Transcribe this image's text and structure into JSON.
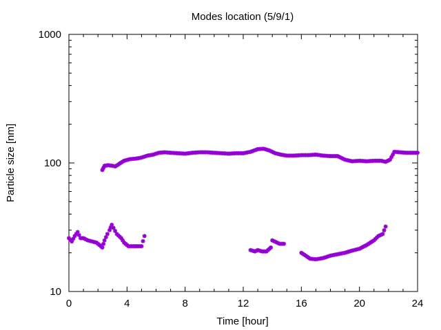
{
  "chart_data": {
    "type": "scatter",
    "title": "Modes location (5/9/1)",
    "xlabel": "Time [hour]",
    "ylabel": "Particle size [nm]",
    "xlim": [
      0,
      24
    ],
    "ylim": [
      10,
      1000
    ],
    "yscale": "log",
    "x_ticks": [
      0,
      4,
      8,
      12,
      16,
      20,
      24
    ],
    "x_tick_labels": [
      "0",
      "4",
      "8",
      "12",
      "16",
      "20",
      "24"
    ],
    "y_ticks": [
      10,
      100,
      1000
    ],
    "y_tick_labels": [
      "10",
      "100",
      "1000"
    ],
    "marker_color": "#9400D3",
    "grid": false,
    "series": [
      {
        "values": [
          [
            2.3,
            88
          ],
          [
            2.45,
            95
          ],
          [
            2.7,
            96
          ],
          [
            3.0,
            95
          ],
          [
            3.2,
            94
          ],
          [
            3.5,
            99
          ],
          [
            3.8,
            104
          ],
          [
            4.2,
            107
          ],
          [
            4.6,
            108
          ],
          [
            5.0,
            110
          ],
          [
            5.4,
            114
          ],
          [
            5.8,
            116
          ],
          [
            6.2,
            120
          ],
          [
            6.6,
            121
          ],
          [
            7.0,
            120
          ],
          [
            7.5,
            119
          ],
          [
            8.0,
            118
          ],
          [
            8.5,
            120
          ],
          [
            9.0,
            121
          ],
          [
            9.5,
            121
          ],
          [
            10.0,
            120
          ],
          [
            10.5,
            119
          ],
          [
            11.0,
            118
          ],
          [
            11.5,
            119
          ],
          [
            12.0,
            119
          ],
          [
            12.5,
            122
          ],
          [
            13.0,
            128
          ],
          [
            13.4,
            129
          ],
          [
            13.8,
            125
          ],
          [
            14.2,
            119
          ],
          [
            14.6,
            116
          ],
          [
            15.0,
            114
          ],
          [
            15.5,
            114
          ],
          [
            16.0,
            115
          ],
          [
            16.5,
            115
          ],
          [
            17.0,
            116
          ],
          [
            17.5,
            114
          ],
          [
            18.0,
            113
          ],
          [
            18.5,
            113
          ],
          [
            19.0,
            106
          ],
          [
            19.5,
            103
          ],
          [
            20.0,
            104
          ],
          [
            20.5,
            103
          ],
          [
            21.0,
            104
          ],
          [
            21.5,
            104
          ],
          [
            21.8,
            102
          ],
          [
            22.1,
            106
          ],
          [
            22.4,
            122
          ],
          [
            22.8,
            121
          ],
          [
            23.2,
            120
          ],
          [
            23.6,
            120
          ],
          [
            24.0,
            120
          ]
        ]
      },
      {
        "values": [
          [
            0.0,
            26
          ],
          [
            0.2,
            24.5
          ],
          [
            0.4,
            27
          ],
          [
            0.6,
            29
          ],
          [
            0.8,
            26
          ],
          [
            1.0,
            26
          ],
          [
            1.3,
            25
          ],
          [
            1.6,
            24.5
          ],
          [
            1.9,
            24
          ],
          [
            2.1,
            23
          ],
          [
            2.3,
            22
          ],
          [
            2.45,
            25
          ],
          [
            2.65,
            28
          ],
          [
            2.8,
            30
          ],
          [
            2.95,
            33
          ],
          [
            3.3,
            28
          ],
          [
            3.6,
            26
          ],
          [
            3.8,
            24
          ],
          [
            4.1,
            22.5
          ],
          [
            4.4,
            22.5
          ],
          [
            4.7,
            22.5
          ],
          [
            5.0,
            22.5
          ],
          [
            5.2,
            27
          ],
          [
            12.5,
            21
          ],
          [
            12.8,
            20.5
          ],
          [
            13.0,
            21
          ],
          [
            13.3,
            20.5
          ],
          [
            13.6,
            20.5
          ],
          [
            13.9,
            22
          ],
          [
            14.0,
            25
          ],
          [
            14.5,
            23.5
          ],
          [
            14.8,
            23.5
          ],
          [
            16.0,
            20
          ],
          [
            16.3,
            19
          ],
          [
            16.6,
            18
          ],
          [
            17.0,
            17.8
          ],
          [
            17.5,
            18.2
          ],
          [
            18.0,
            19
          ],
          [
            18.5,
            19.5
          ],
          [
            19.0,
            20
          ],
          [
            19.5,
            20.8
          ],
          [
            20.0,
            21.5
          ],
          [
            20.5,
            23
          ],
          [
            21.0,
            25
          ],
          [
            21.3,
            27
          ],
          [
            21.6,
            28
          ],
          [
            21.8,
            32
          ]
        ]
      }
    ]
  }
}
